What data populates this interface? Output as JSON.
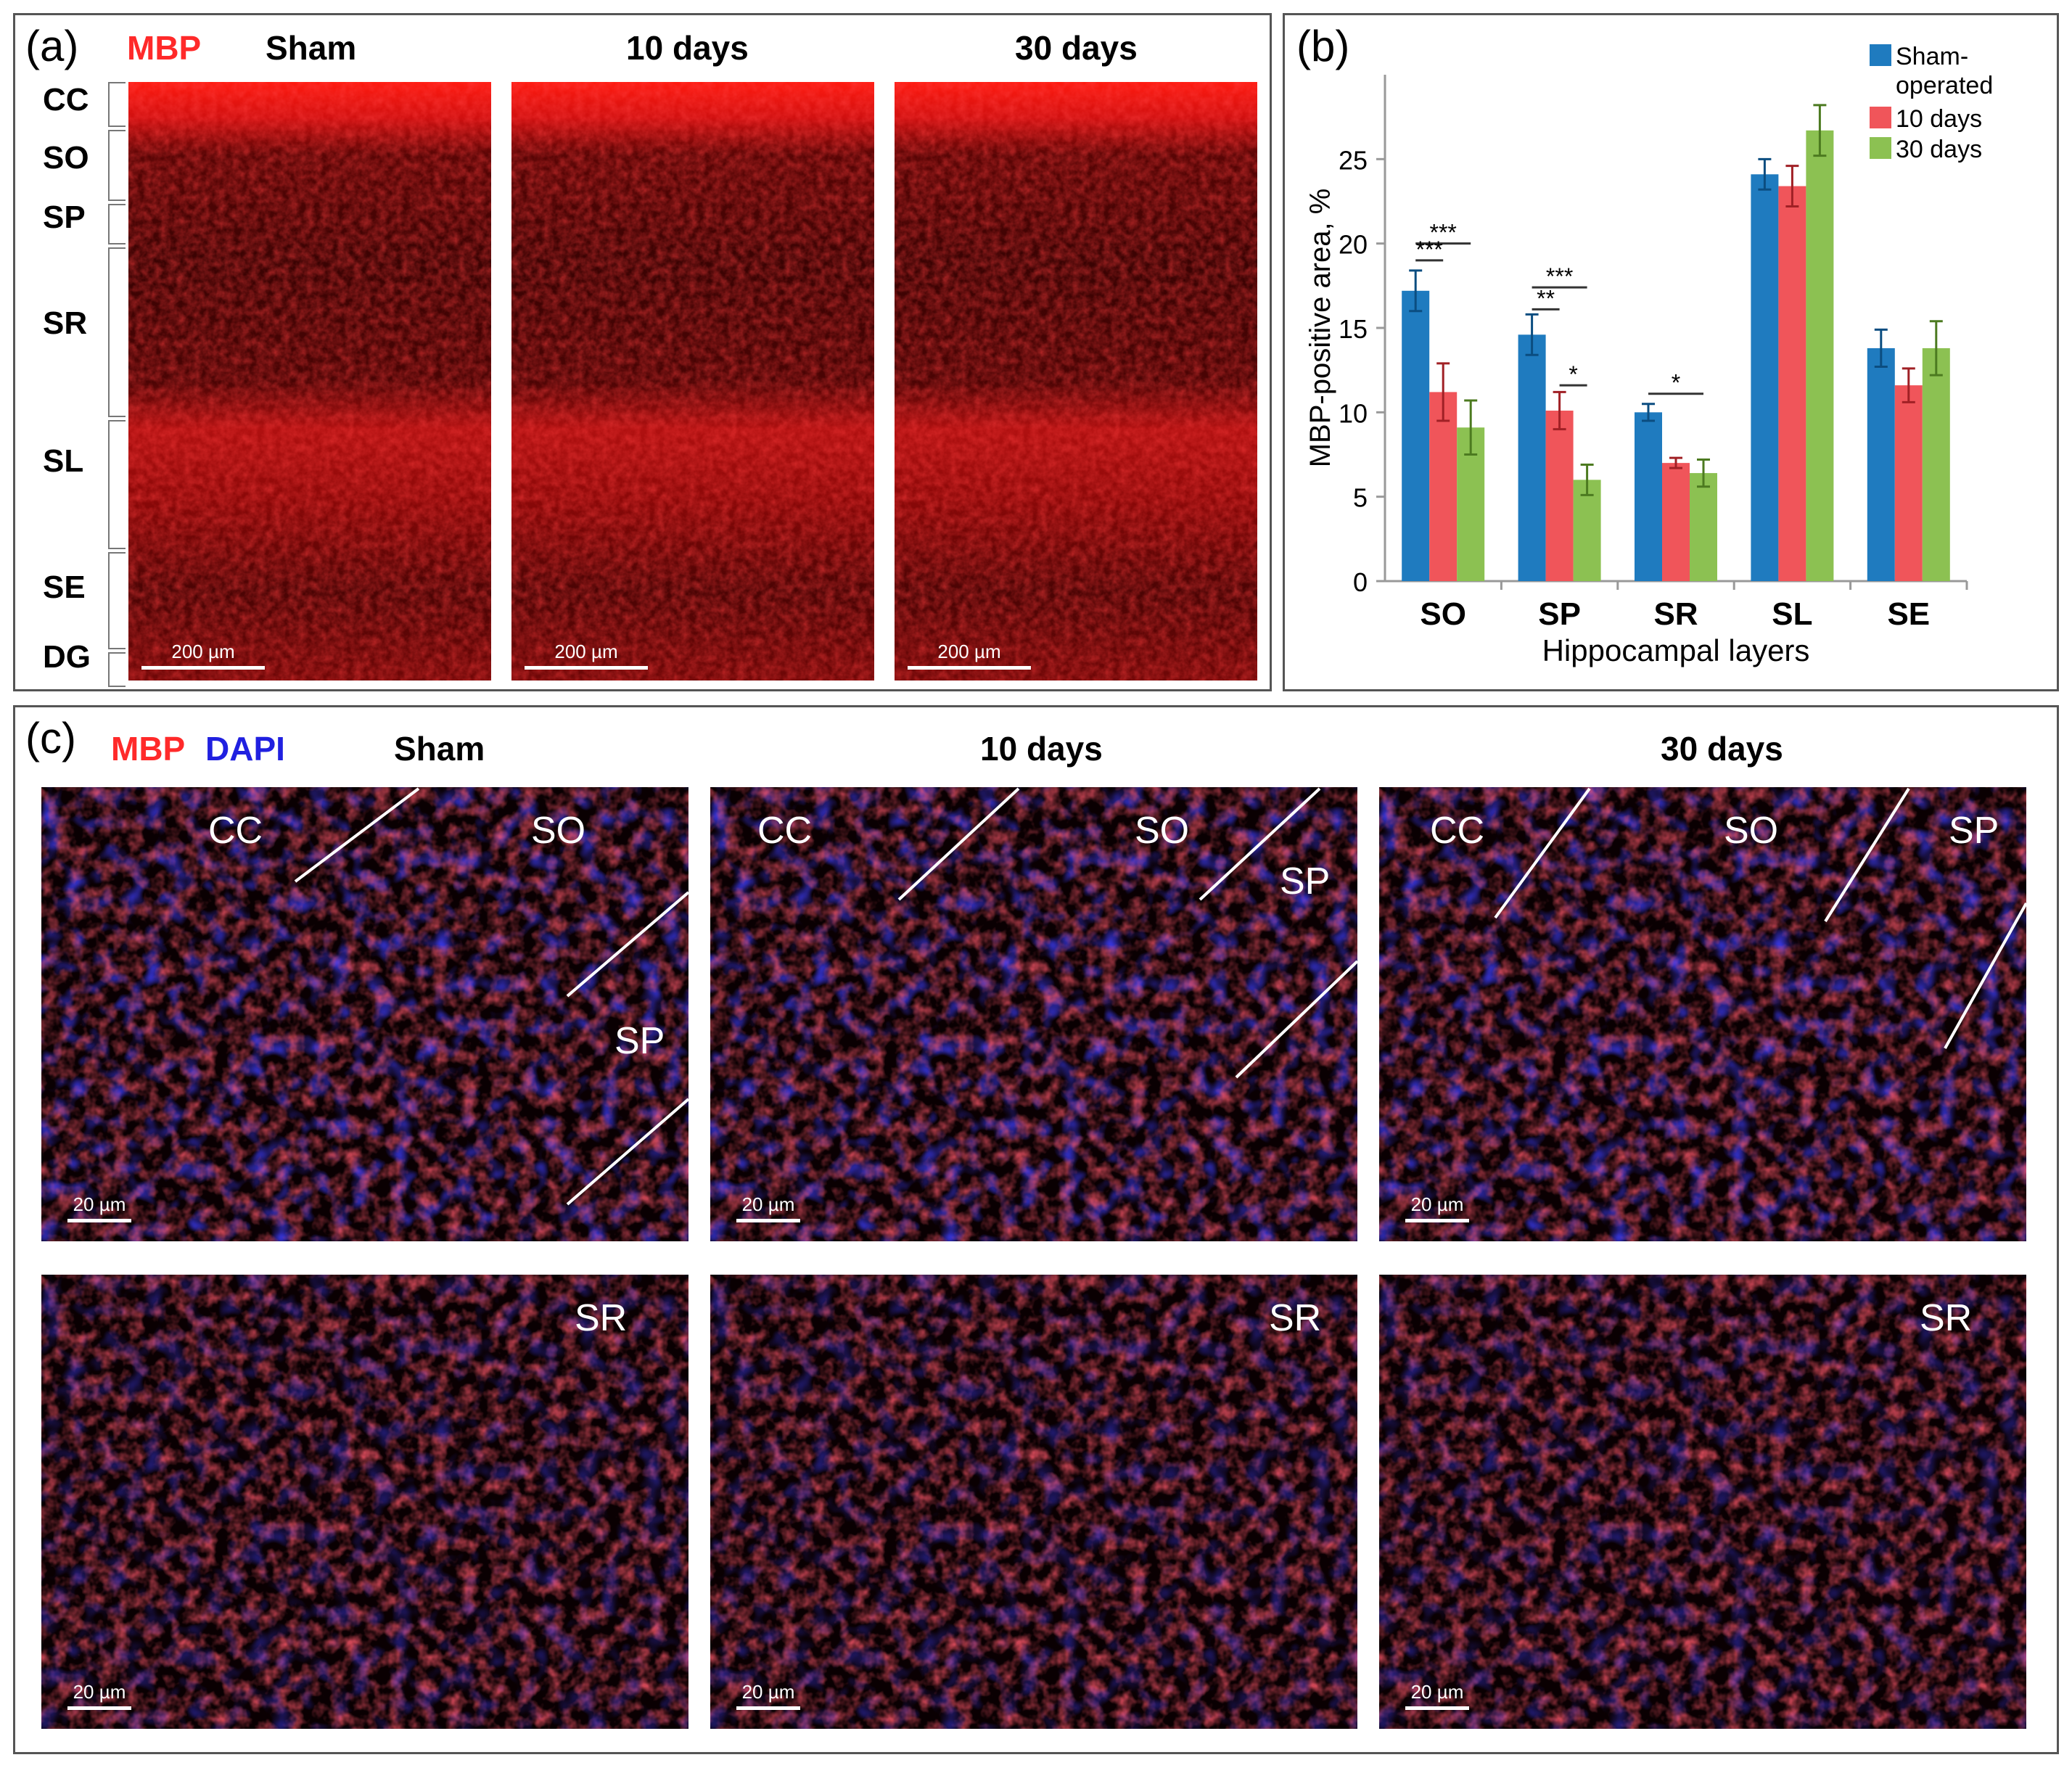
{
  "panel_a": {
    "label": "(a)",
    "stain": "MBP",
    "columns": [
      "Sham",
      "10 days",
      "30 days"
    ],
    "layers": [
      "CC",
      "SO",
      "SP",
      "SR",
      "SL",
      "SE",
      "DG"
    ],
    "scale_bar": "200 µm"
  },
  "panel_b": {
    "label": "(b)"
  },
  "chart_data": {
    "type": "bar",
    "categories": [
      "SO",
      "SP",
      "SR",
      "SL",
      "SE"
    ],
    "xlabel": "Hippocampal layers",
    "ylabel": "MBP-positive area, %",
    "ylim": [
      0,
      30
    ],
    "yticks": [
      0,
      5,
      10,
      15,
      20,
      25
    ],
    "grid": false,
    "legend_position": "top-right",
    "series": [
      {
        "name": "Sham-operated",
        "color": "#1f7bbf",
        "values": [
          17.2,
          14.6,
          10.0,
          24.1,
          13.8
        ],
        "errors": [
          1.2,
          1.2,
          0.5,
          0.9,
          1.1
        ]
      },
      {
        "name": "10 days",
        "color": "#f0555a",
        "values": [
          11.2,
          10.1,
          7.0,
          23.4,
          11.6
        ],
        "errors": [
          1.7,
          1.1,
          0.3,
          1.2,
          1.0
        ]
      },
      {
        "name": "30 days",
        "color": "#8cc152",
        "values": [
          9.1,
          6.0,
          6.4,
          26.7,
          13.8
        ],
        "errors": [
          1.6,
          0.9,
          0.8,
          1.5,
          1.6
        ]
      }
    ],
    "annotations": [
      {
        "category": "SO",
        "from": 0,
        "to": 2,
        "text": "***",
        "y": 20.0
      },
      {
        "category": "SO",
        "from": 0,
        "to": 1,
        "text": "***",
        "y": 19.0
      },
      {
        "category": "SP",
        "from": 0,
        "to": 2,
        "text": "***",
        "y": 17.4
      },
      {
        "category": "SP",
        "from": 0,
        "to": 1,
        "text": "**",
        "y": 16.1
      },
      {
        "category": "SP",
        "from": 1,
        "to": 2,
        "text": "*",
        "y": 11.6
      },
      {
        "category": "SR",
        "from": 0,
        "to": 2,
        "text": "*",
        "y": 11.1
      }
    ]
  },
  "panel_c": {
    "label": "(c)",
    "stain1": "MBP",
    "stain2": "DAPI",
    "columns": [
      "Sham",
      "10 days",
      "30 days"
    ],
    "row1_labels": [
      [
        "CC",
        "SO",
        "SP"
      ],
      [
        "CC",
        "SO",
        "SP"
      ],
      [
        "CC",
        "SO",
        "SP"
      ]
    ],
    "row2_label": "SR",
    "scale_bar": "20 µm"
  }
}
